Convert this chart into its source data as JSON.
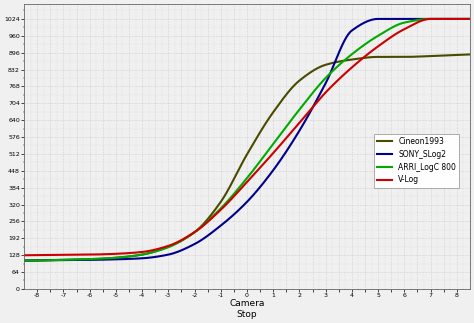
{
  "title": "",
  "xlabel": "Camera\nStop",
  "ylabel": "",
  "y_ticks": [
    0,
    64,
    128,
    192,
    256,
    320,
    384,
    448,
    512,
    576,
    640,
    704,
    768,
    832,
    896,
    960,
    1024
  ],
  "y_tick_labels": [
    "0",
    "64",
    "128",
    "192",
    "256",
    "320",
    "384",
    "448",
    "512",
    "576",
    "640",
    "704",
    "768",
    "832",
    "896",
    "960",
    "1024"
  ],
  "ylim": [
    0,
    1080
  ],
  "xlim": [
    -8.5,
    8.5
  ],
  "grid_color": "#aaaaaa",
  "background_color": "#f0f0f0",
  "lines": [
    {
      "label": "Cineon1993",
      "color": "#4a4a00",
      "linewidth": 1.5
    },
    {
      "label": "SONY_SLog2",
      "color": "#00008b",
      "linewidth": 1.5
    },
    {
      "label": "ARRI_LogC 800",
      "color": "#00aa00",
      "linewidth": 1.5
    },
    {
      "label": "V-Log",
      "color": "#cc0000",
      "linewidth": 1.5
    }
  ],
  "cineon_points": {
    "x": [
      -8,
      -7,
      -6,
      -5,
      -4,
      -3,
      -2,
      -1,
      0,
      1,
      2,
      3,
      4,
      5,
      6,
      7,
      8
    ],
    "y": [
      108,
      110,
      112,
      118,
      130,
      160,
      215,
      330,
      510,
      670,
      790,
      850,
      870,
      880,
      880,
      883,
      887
    ]
  },
  "sony_points": {
    "x": [
      -8,
      -7,
      -6,
      -5,
      -4,
      -3,
      -2,
      -1,
      0,
      1,
      2,
      3,
      4,
      5,
      6,
      7,
      8
    ],
    "y": [
      108,
      109,
      110,
      112,
      116,
      130,
      170,
      240,
      330,
      450,
      600,
      780,
      980,
      1024,
      1024,
      1024,
      1024
    ]
  },
  "arri_points": {
    "x": [
      -8,
      -7,
      -6,
      -5,
      -4,
      -3,
      -2,
      -1,
      0,
      1,
      2,
      3,
      4,
      5,
      6,
      7,
      8
    ],
    "y": [
      108,
      110,
      113,
      118,
      130,
      158,
      215,
      305,
      420,
      550,
      680,
      800,
      890,
      960,
      1010,
      1024,
      1024
    ]
  },
  "vlog_points": {
    "x": [
      -8,
      -7,
      -6,
      -5,
      -4,
      -3,
      -2,
      -1,
      0,
      1,
      2,
      3,
      4,
      5,
      6,
      7,
      8
    ],
    "y": [
      128,
      129,
      130,
      133,
      140,
      163,
      215,
      300,
      405,
      515,
      630,
      745,
      840,
      920,
      985,
      1024,
      1024
    ]
  }
}
